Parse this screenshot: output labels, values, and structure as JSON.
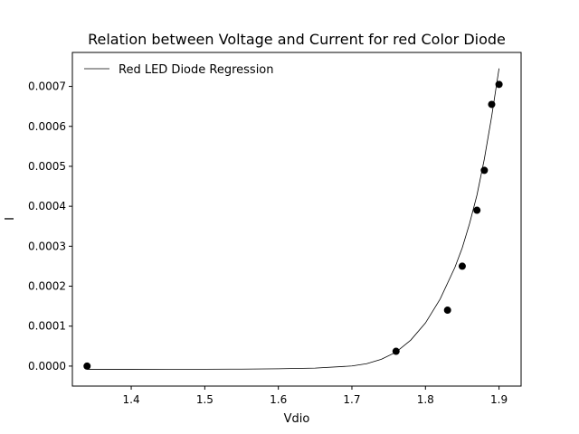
{
  "chart_data": {
    "type": "scatter",
    "title": "Relation between Voltage and Current for red Color Diode",
    "xlabel": "Vdio",
    "ylabel": "I",
    "xlim": [
      1.32,
      1.93
    ],
    "ylim": [
      -5e-05,
      0.000785
    ],
    "xticks": [
      1.4,
      1.5,
      1.6,
      1.7,
      1.8,
      1.9
    ],
    "xtick_labels": [
      "1.4",
      "1.5",
      "1.6",
      "1.7",
      "1.8",
      "1.9"
    ],
    "yticks": [
      0.0,
      0.0001,
      0.0002,
      0.0003,
      0.0004,
      0.0005,
      0.0006,
      0.0007
    ],
    "ytick_labels": [
      "0.0000",
      "0.0001",
      "0.0002",
      "0.0003",
      "0.0004",
      "0.0005",
      "0.0006",
      "0.0007"
    ],
    "grid": false,
    "legend_position": "top-left",
    "series": [
      {
        "type": "scatter",
        "color": "#000000",
        "x": [
          1.34,
          1.76,
          1.83,
          1.85,
          1.87,
          1.88,
          1.89,
          1.9
        ],
        "y": [
          0.0,
          3.7e-05,
          0.00014,
          0.00025,
          0.00039,
          0.00049,
          0.000655,
          0.000705
        ]
      },
      {
        "type": "line",
        "name": "Red LED Diode Regression",
        "color": "#000000",
        "x": [
          1.34,
          1.4,
          1.45,
          1.5,
          1.55,
          1.6,
          1.65,
          1.7,
          1.72,
          1.74,
          1.76,
          1.78,
          1.8,
          1.82,
          1.84,
          1.85,
          1.86,
          1.87,
          1.88,
          1.89,
          1.9
        ],
        "y": [
          -8e-06,
          -8e-06,
          -7.9e-06,
          -7.8e-06,
          -7.5e-06,
          -6.8e-06,
          -5e-06,
          3e-07,
          6e-06,
          1.7e-05,
          3.5e-05,
          6.5e-05,
          0.000108,
          0.000168,
          0.000247,
          0.000296,
          0.000357,
          0.000428,
          0.000518,
          0.000625,
          0.000745
        ]
      }
    ]
  }
}
